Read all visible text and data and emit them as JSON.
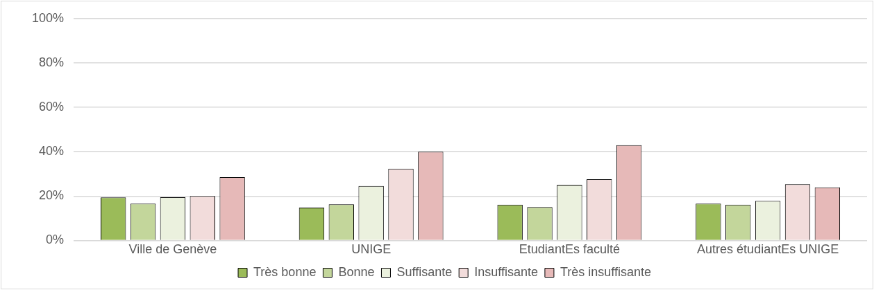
{
  "chart_data": {
    "type": "bar",
    "categories": [
      "Ville de Genève",
      "UNIGE",
      "EtudiantEs faculté",
      "Autres étudiantEs UNIGE"
    ],
    "series": [
      {
        "name": "Très bonne",
        "color": "#9bbb59",
        "values": [
          19.4,
          14.8,
          16.1,
          16.6
        ]
      },
      {
        "name": "Bonne",
        "color": "#c3d69b",
        "values": [
          16.6,
          16.3,
          15,
          16.1
        ]
      },
      {
        "name": "Suffisante",
        "color": "#ebf1de",
        "values": [
          19.5,
          24.5,
          25.1,
          17.8
        ]
      },
      {
        "name": "Insuffisante",
        "color": "#f2dcdb",
        "values": [
          20,
          32.3,
          27.6,
          25.3
        ]
      },
      {
        "name": "Très insuffisante",
        "color": "#e6b9b8",
        "values": [
          28.5,
          40,
          42.9,
          23.9
        ]
      }
    ],
    "ylim": [
      0,
      100
    ],
    "yticks": [
      {
        "value": 0,
        "label": "0%"
      },
      {
        "value": 20,
        "label": "20%"
      },
      {
        "value": 40,
        "label": "40%"
      },
      {
        "value": 60,
        "label": "60%"
      },
      {
        "value": 80,
        "label": "80%"
      },
      {
        "value": 100,
        "label": "100%"
      }
    ],
    "grid": "y",
    "legend": "bottom"
  }
}
